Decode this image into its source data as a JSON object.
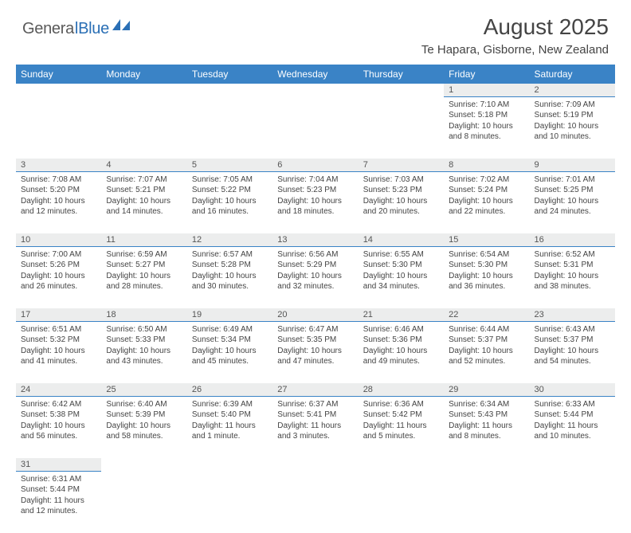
{
  "brand": {
    "part1": "Genera",
    "part2": "lBlue"
  },
  "title": "August 2025",
  "location": "Te Hapara, Gisborne, New Zealand",
  "colors": {
    "header_bg": "#3a83c6",
    "header_text": "#ffffff",
    "daynum_bg": "#eceded",
    "day_border": "#3a83c6",
    "body_text": "#444444",
    "logo_gray": "#5a5a5a",
    "logo_blue": "#2a6fb5"
  },
  "weekdays": [
    "Sunday",
    "Monday",
    "Tuesday",
    "Wednesday",
    "Thursday",
    "Friday",
    "Saturday"
  ],
  "weeks": [
    [
      null,
      null,
      null,
      null,
      null,
      {
        "n": "1",
        "sr": "Sunrise: 7:10 AM",
        "ss": "Sunset: 5:18 PM",
        "d1": "Daylight: 10 hours",
        "d2": "and 8 minutes."
      },
      {
        "n": "2",
        "sr": "Sunrise: 7:09 AM",
        "ss": "Sunset: 5:19 PM",
        "d1": "Daylight: 10 hours",
        "d2": "and 10 minutes."
      }
    ],
    [
      {
        "n": "3",
        "sr": "Sunrise: 7:08 AM",
        "ss": "Sunset: 5:20 PM",
        "d1": "Daylight: 10 hours",
        "d2": "and 12 minutes."
      },
      {
        "n": "4",
        "sr": "Sunrise: 7:07 AM",
        "ss": "Sunset: 5:21 PM",
        "d1": "Daylight: 10 hours",
        "d2": "and 14 minutes."
      },
      {
        "n": "5",
        "sr": "Sunrise: 7:05 AM",
        "ss": "Sunset: 5:22 PM",
        "d1": "Daylight: 10 hours",
        "d2": "and 16 minutes."
      },
      {
        "n": "6",
        "sr": "Sunrise: 7:04 AM",
        "ss": "Sunset: 5:23 PM",
        "d1": "Daylight: 10 hours",
        "d2": "and 18 minutes."
      },
      {
        "n": "7",
        "sr": "Sunrise: 7:03 AM",
        "ss": "Sunset: 5:23 PM",
        "d1": "Daylight: 10 hours",
        "d2": "and 20 minutes."
      },
      {
        "n": "8",
        "sr": "Sunrise: 7:02 AM",
        "ss": "Sunset: 5:24 PM",
        "d1": "Daylight: 10 hours",
        "d2": "and 22 minutes."
      },
      {
        "n": "9",
        "sr": "Sunrise: 7:01 AM",
        "ss": "Sunset: 5:25 PM",
        "d1": "Daylight: 10 hours",
        "d2": "and 24 minutes."
      }
    ],
    [
      {
        "n": "10",
        "sr": "Sunrise: 7:00 AM",
        "ss": "Sunset: 5:26 PM",
        "d1": "Daylight: 10 hours",
        "d2": "and 26 minutes."
      },
      {
        "n": "11",
        "sr": "Sunrise: 6:59 AM",
        "ss": "Sunset: 5:27 PM",
        "d1": "Daylight: 10 hours",
        "d2": "and 28 minutes."
      },
      {
        "n": "12",
        "sr": "Sunrise: 6:57 AM",
        "ss": "Sunset: 5:28 PM",
        "d1": "Daylight: 10 hours",
        "d2": "and 30 minutes."
      },
      {
        "n": "13",
        "sr": "Sunrise: 6:56 AM",
        "ss": "Sunset: 5:29 PM",
        "d1": "Daylight: 10 hours",
        "d2": "and 32 minutes."
      },
      {
        "n": "14",
        "sr": "Sunrise: 6:55 AM",
        "ss": "Sunset: 5:30 PM",
        "d1": "Daylight: 10 hours",
        "d2": "and 34 minutes."
      },
      {
        "n": "15",
        "sr": "Sunrise: 6:54 AM",
        "ss": "Sunset: 5:30 PM",
        "d1": "Daylight: 10 hours",
        "d2": "and 36 minutes."
      },
      {
        "n": "16",
        "sr": "Sunrise: 6:52 AM",
        "ss": "Sunset: 5:31 PM",
        "d1": "Daylight: 10 hours",
        "d2": "and 38 minutes."
      }
    ],
    [
      {
        "n": "17",
        "sr": "Sunrise: 6:51 AM",
        "ss": "Sunset: 5:32 PM",
        "d1": "Daylight: 10 hours",
        "d2": "and 41 minutes."
      },
      {
        "n": "18",
        "sr": "Sunrise: 6:50 AM",
        "ss": "Sunset: 5:33 PM",
        "d1": "Daylight: 10 hours",
        "d2": "and 43 minutes."
      },
      {
        "n": "19",
        "sr": "Sunrise: 6:49 AM",
        "ss": "Sunset: 5:34 PM",
        "d1": "Daylight: 10 hours",
        "d2": "and 45 minutes."
      },
      {
        "n": "20",
        "sr": "Sunrise: 6:47 AM",
        "ss": "Sunset: 5:35 PM",
        "d1": "Daylight: 10 hours",
        "d2": "and 47 minutes."
      },
      {
        "n": "21",
        "sr": "Sunrise: 6:46 AM",
        "ss": "Sunset: 5:36 PM",
        "d1": "Daylight: 10 hours",
        "d2": "and 49 minutes."
      },
      {
        "n": "22",
        "sr": "Sunrise: 6:44 AM",
        "ss": "Sunset: 5:37 PM",
        "d1": "Daylight: 10 hours",
        "d2": "and 52 minutes."
      },
      {
        "n": "23",
        "sr": "Sunrise: 6:43 AM",
        "ss": "Sunset: 5:37 PM",
        "d1": "Daylight: 10 hours",
        "d2": "and 54 minutes."
      }
    ],
    [
      {
        "n": "24",
        "sr": "Sunrise: 6:42 AM",
        "ss": "Sunset: 5:38 PM",
        "d1": "Daylight: 10 hours",
        "d2": "and 56 minutes."
      },
      {
        "n": "25",
        "sr": "Sunrise: 6:40 AM",
        "ss": "Sunset: 5:39 PM",
        "d1": "Daylight: 10 hours",
        "d2": "and 58 minutes."
      },
      {
        "n": "26",
        "sr": "Sunrise: 6:39 AM",
        "ss": "Sunset: 5:40 PM",
        "d1": "Daylight: 11 hours",
        "d2": "and 1 minute."
      },
      {
        "n": "27",
        "sr": "Sunrise: 6:37 AM",
        "ss": "Sunset: 5:41 PM",
        "d1": "Daylight: 11 hours",
        "d2": "and 3 minutes."
      },
      {
        "n": "28",
        "sr": "Sunrise: 6:36 AM",
        "ss": "Sunset: 5:42 PM",
        "d1": "Daylight: 11 hours",
        "d2": "and 5 minutes."
      },
      {
        "n": "29",
        "sr": "Sunrise: 6:34 AM",
        "ss": "Sunset: 5:43 PM",
        "d1": "Daylight: 11 hours",
        "d2": "and 8 minutes."
      },
      {
        "n": "30",
        "sr": "Sunrise: 6:33 AM",
        "ss": "Sunset: 5:44 PM",
        "d1": "Daylight: 11 hours",
        "d2": "and 10 minutes."
      }
    ],
    [
      {
        "n": "31",
        "sr": "Sunrise: 6:31 AM",
        "ss": "Sunset: 5:44 PM",
        "d1": "Daylight: 11 hours",
        "d2": "and 12 minutes."
      },
      null,
      null,
      null,
      null,
      null,
      null
    ]
  ]
}
